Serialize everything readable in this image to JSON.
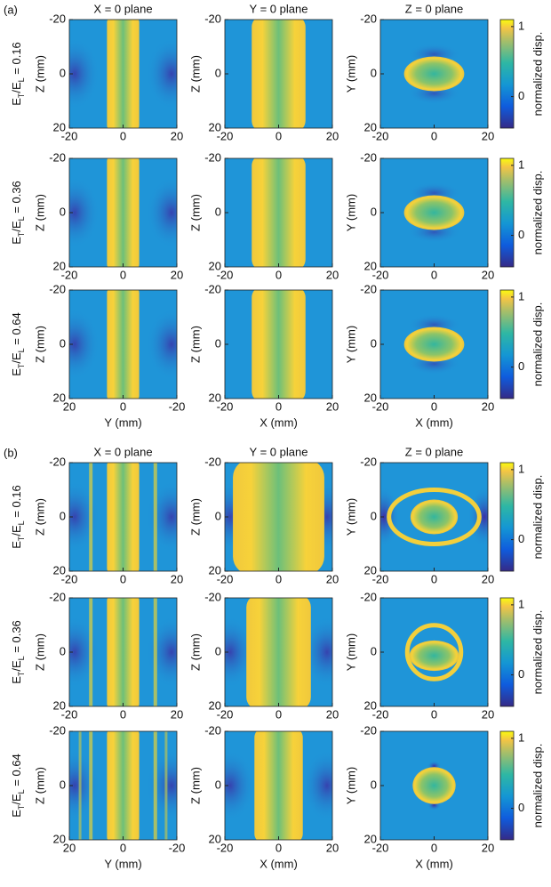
{
  "parts": [
    {
      "label": "(a)",
      "titles": [
        "X = 0 plane",
        "Y = 0 plane",
        "Z = 0 plane"
      ],
      "rows": [
        {
          "label": [
            "E",
            "T",
            "/E",
            "L",
            " = 0.16"
          ],
          "colorbar_label": "normalized disp.",
          "clim": [
            -0.45,
            1.1
          ],
          "cticks": [
            0,
            1
          ],
          "panels": [
            {
              "ylabel": "Z (mm)",
              "xlim": [
                -20,
                20
              ],
              "xticks": [
                -20,
                0,
                20
              ],
              "ylim": [
                -20,
                20
              ],
              "yticks": [
                -20,
                0,
                20
              ]
            },
            {
              "ylabel": "Z (mm)",
              "xlim": [
                -20,
                20
              ],
              "xticks": [
                -20,
                0,
                20
              ],
              "ylim": [
                -20,
                20
              ],
              "yticks": [
                -20,
                0,
                20
              ]
            },
            {
              "ylabel": "Y (mm)",
              "xlim": [
                -20,
                20
              ],
              "xticks": [
                -20,
                0,
                20
              ],
              "ylim": [
                -20,
                20
              ],
              "yticks": [
                -20,
                0,
                20
              ]
            }
          ]
        },
        {
          "label": [
            "E",
            "T",
            "/E",
            "L",
            " = 0.36"
          ],
          "colorbar_label": "normalized disp.",
          "clim": [
            -0.45,
            1.1
          ],
          "cticks": [
            0,
            1
          ],
          "panels": [
            {
              "ylabel": "Z (mm)",
              "xlim": [
                -20,
                20
              ],
              "xticks": [
                -20,
                0,
                20
              ],
              "ylim": [
                -20,
                20
              ],
              "yticks": [
                -20,
                0,
                20
              ]
            },
            {
              "ylabel": "Z (mm)",
              "xlim": [
                -20,
                20
              ],
              "xticks": [
                -20,
                0,
                20
              ],
              "ylim": [
                -20,
                20
              ],
              "yticks": [
                -20,
                0,
                20
              ]
            },
            {
              "ylabel": "Y (mm)",
              "xlim": [
                -20,
                20
              ],
              "xticks": [
                -20,
                0,
                20
              ],
              "ylim": [
                -20,
                20
              ],
              "yticks": [
                -20,
                0,
                20
              ]
            }
          ]
        },
        {
          "label": [
            "E",
            "T",
            "/E",
            "L",
            " = 0.64"
          ],
          "colorbar_label": "normalized disp.",
          "clim": [
            -0.45,
            1.1
          ],
          "cticks": [
            0,
            1
          ],
          "panels": [
            {
              "ylabel": "Z (mm)",
              "xlabel": "Y (mm)",
              "xlim": [
                20,
                -20
              ],
              "xticks": [
                20,
                0,
                -20
              ],
              "ylim": [
                -20,
                20
              ],
              "yticks": [
                -20,
                0,
                20
              ]
            },
            {
              "ylabel": "Z (mm)",
              "xlabel": "X (mm)",
              "xlim": [
                -20,
                20
              ],
              "xticks": [
                -20,
                0,
                20
              ],
              "ylim": [
                -20,
                20
              ],
              "yticks": [
                -20,
                0,
                20
              ]
            },
            {
              "ylabel": "Y (mm)",
              "xlabel": "X (mm)",
              "xlim": [
                -20,
                20
              ],
              "xticks": [
                -20,
                0,
                20
              ],
              "ylim": [
                -20,
                20
              ],
              "yticks": [
                -20,
                0,
                20
              ]
            }
          ]
        }
      ]
    },
    {
      "label": "(b)",
      "titles": [
        "X = 0 plane",
        "Y = 0 plane",
        "Z = 0 plane"
      ],
      "rows": [
        {
          "label": [
            "E",
            "T",
            "/E",
            "L",
            " = 0.16"
          ],
          "colorbar_label": "normalized disp.",
          "clim": [
            -0.45,
            1.1
          ],
          "cticks": [
            0,
            1
          ],
          "panels": [
            {
              "ylabel": "Z (mm)",
              "xlim": [
                -20,
                20
              ],
              "xticks": [
                -20,
                0,
                20
              ],
              "ylim": [
                -20,
                20
              ],
              "yticks": [
                -20,
                0,
                20
              ]
            },
            {
              "ylabel": "Z (mm)",
              "xlim": [
                -20,
                20
              ],
              "xticks": [
                -20,
                0,
                20
              ],
              "ylim": [
                -20,
                20
              ],
              "yticks": [
                -20,
                0,
                20
              ]
            },
            {
              "ylabel": "Y (mm)",
              "xlim": [
                -20,
                20
              ],
              "xticks": [
                -20,
                0,
                20
              ],
              "ylim": [
                -20,
                20
              ],
              "yticks": [
                -20,
                0,
                20
              ]
            }
          ]
        },
        {
          "label": [
            "E",
            "T",
            "/E",
            "L",
            " = 0.36"
          ],
          "colorbar_label": "normalized disp.",
          "clim": [
            -0.45,
            1.1
          ],
          "cticks": [
            0,
            1
          ],
          "panels": [
            {
              "ylabel": "Z (mm)",
              "xlim": [
                -20,
                20
              ],
              "xticks": [
                -20,
                0,
                20
              ],
              "ylim": [
                -20,
                20
              ],
              "yticks": [
                -20,
                0,
                20
              ]
            },
            {
              "ylabel": "Z (mm)",
              "xlim": [
                -20,
                20
              ],
              "xticks": [
                -20,
                0,
                20
              ],
              "ylim": [
                -20,
                20
              ],
              "yticks": [
                -20,
                0,
                20
              ]
            },
            {
              "ylabel": "Y (mm)",
              "xlim": [
                -20,
                20
              ],
              "xticks": [
                -20,
                0,
                20
              ],
              "ylim": [
                -20,
                20
              ],
              "yticks": [
                -20,
                0,
                20
              ]
            }
          ]
        },
        {
          "label": [
            "E",
            "T",
            "/E",
            "L",
            " = 0.64"
          ],
          "colorbar_label": "normalized disp.",
          "clim": [
            -0.45,
            1.1
          ],
          "cticks": [
            0,
            1
          ],
          "panels": [
            {
              "ylabel": "Z (mm)",
              "xlabel": "Y (mm)",
              "xlim": [
                20,
                -20
              ],
              "xticks": [
                20,
                0,
                -20
              ],
              "ylim": [
                -20,
                20
              ],
              "yticks": [
                -20,
                0,
                20
              ]
            },
            {
              "ylabel": "Z (mm)",
              "xlabel": "X (mm)",
              "xlim": [
                -20,
                20
              ],
              "xticks": [
                -20,
                0,
                20
              ],
              "ylim": [
                -20,
                20
              ],
              "yticks": [
                -20,
                0,
                20
              ]
            },
            {
              "ylabel": "Y (mm)",
              "xlabel": "X (mm)",
              "xlim": [
                -20,
                20
              ],
              "xticks": [
                -20,
                0,
                20
              ],
              "ylim": [
                -20,
                20
              ],
              "yticks": [
                -20,
                0,
                20
              ]
            }
          ]
        }
      ]
    }
  ]
}
